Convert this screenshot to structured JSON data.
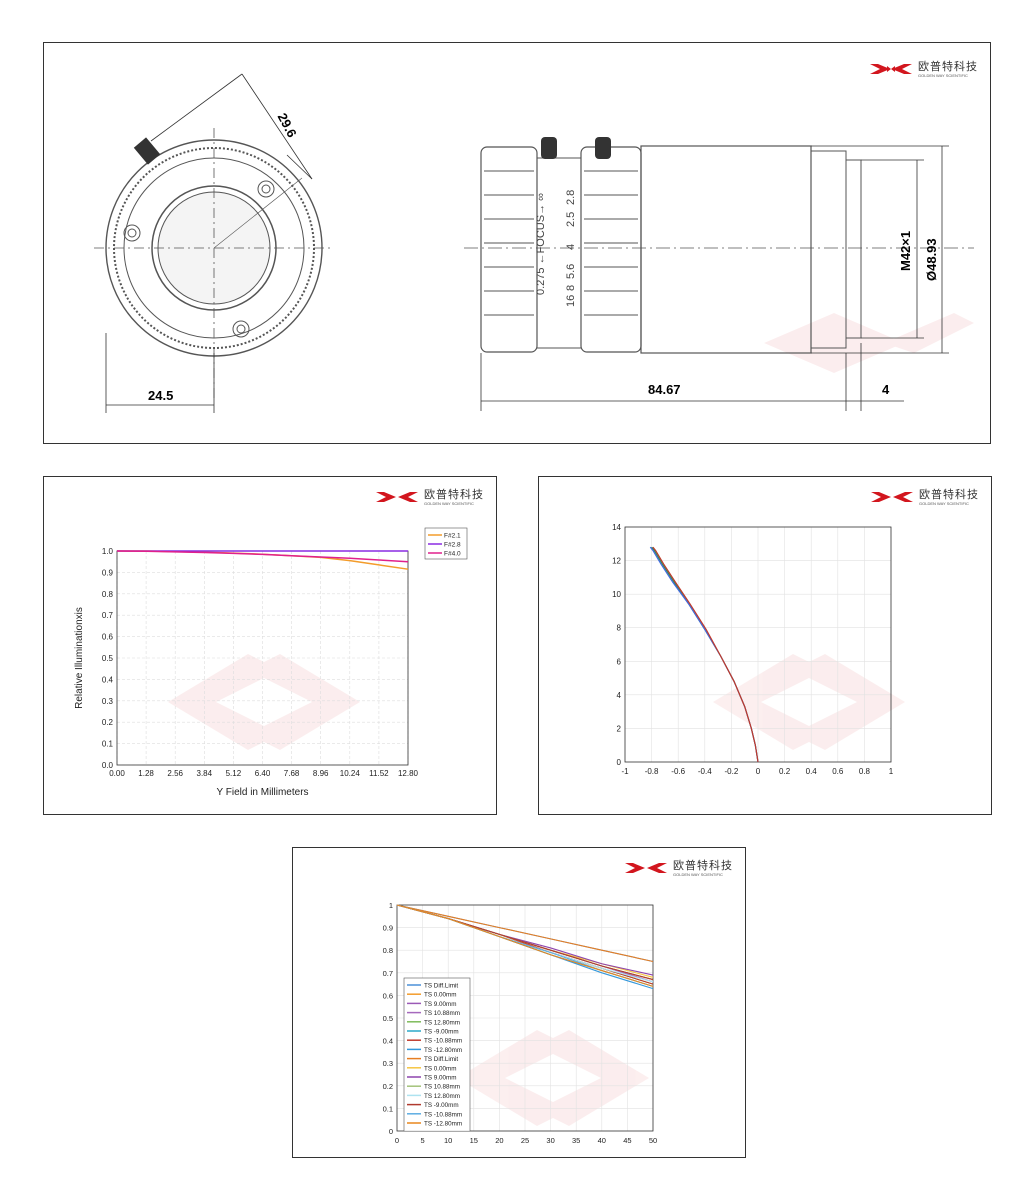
{
  "logo": {
    "cn": "欧普特科技",
    "en": "GOLDEN WAY SCIENTIFIC",
    "color": "#d2161e"
  },
  "drawing": {
    "dims": {
      "side_offset": "29.6",
      "radius": "24.5",
      "length": "84.67",
      "mount_len": "4",
      "thread": "M42×1",
      "diameter": "Ø48.93"
    },
    "scale": {
      "focus": "0.275 ←FOCUS→ ∞",
      "apertures": [
        "2.8",
        "2.5",
        "4",
        "5.6",
        "8",
        "16"
      ]
    }
  },
  "illum_chart": {
    "chart_data": {
      "type": "line",
      "x": [
        0,
        1.28,
        2.56,
        3.84,
        5.12,
        6.4,
        7.68,
        8.96,
        10.24,
        11.52,
        12.8
      ],
      "series": [
        {
          "name": "F#2.1",
          "color": "#f39c2b",
          "values": [
            1.0,
            1.0,
            0.997,
            0.995,
            0.99,
            0.985,
            0.978,
            0.97,
            0.955,
            0.935,
            0.915
          ]
        },
        {
          "name": "F#2.8",
          "color": "#8a2be2",
          "values": [
            1.0,
            1.0,
            1.0,
            1.0,
            1.0,
            1.0,
            1.0,
            1.0,
            1.0,
            1.0,
            1.0
          ]
        },
        {
          "name": "F#4.0",
          "color": "#e0208c",
          "values": [
            1.0,
            0.999,
            0.996,
            0.993,
            0.989,
            0.984,
            0.978,
            0.972,
            0.966,
            0.958,
            0.95
          ]
        }
      ],
      "xlabel": "Y Field in Millimeters",
      "ylabel": "Relative Illuminationxis",
      "xticks": [
        "0.00",
        "1.28",
        "2.56",
        "3.84",
        "5.12",
        "6.40",
        "7.68",
        "8.96",
        "10.24",
        "11.52",
        "12.80"
      ],
      "yticks": [
        "0.0",
        "0.1",
        "0.2",
        "0.3",
        "0.4",
        "0.5",
        "0.6",
        "0.7",
        "0.8",
        "0.9",
        "1.0"
      ],
      "xlim": [
        0,
        12.8
      ],
      "ylim": [
        0,
        1.0
      ],
      "grid": true,
      "legend": "top-right"
    }
  },
  "distortion_chart": {
    "chart_data": {
      "type": "line",
      "xlim": [
        -1,
        1
      ],
      "ylim": [
        0,
        14
      ],
      "xticks": [
        "-1",
        "-0.8",
        "-0.6",
        "-0.4",
        "-0.2",
        "0",
        "0.2",
        "0.4",
        "0.6",
        "0.8",
        "1"
      ],
      "yticks": [
        "0",
        "2",
        "4",
        "6",
        "8",
        "10",
        "12",
        "14"
      ],
      "series": [
        {
          "color": "#2e8b57",
          "points": [
            [
              0,
              0
            ],
            [
              -0.02,
              1
            ],
            [
              -0.05,
              2
            ],
            [
              -0.1,
              3.3
            ],
            [
              -0.18,
              4.8
            ],
            [
              -0.28,
              6.3
            ],
            [
              -0.4,
              7.9
            ],
            [
              -0.52,
              9.4
            ],
            [
              -0.63,
              10.7
            ],
            [
              -0.72,
              11.8
            ],
            [
              -0.78,
              12.6
            ],
            [
              -0.8,
              12.8
            ]
          ]
        },
        {
          "color": "#4169e1",
          "points": [
            [
              0,
              0
            ],
            [
              -0.02,
              1
            ],
            [
              -0.05,
              2
            ],
            [
              -0.1,
              3.3
            ],
            [
              -0.18,
              4.8
            ],
            [
              -0.28,
              6.3
            ],
            [
              -0.4,
              7.9
            ],
            [
              -0.52,
              9.4
            ],
            [
              -0.64,
              10.7
            ],
            [
              -0.73,
              11.8
            ],
            [
              -0.79,
              12.6
            ],
            [
              -0.81,
              12.8
            ]
          ]
        },
        {
          "color": "#c0392b",
          "points": [
            [
              0,
              0
            ],
            [
              -0.02,
              1
            ],
            [
              -0.05,
              2
            ],
            [
              -0.1,
              3.3
            ],
            [
              -0.18,
              4.8
            ],
            [
              -0.28,
              6.3
            ],
            [
              -0.39,
              7.9
            ],
            [
              -0.51,
              9.4
            ],
            [
              -0.62,
              10.7
            ],
            [
              -0.71,
              11.8
            ],
            [
              -0.77,
              12.6
            ],
            [
              -0.79,
              12.8
            ]
          ]
        }
      ],
      "grid": true
    }
  },
  "mtf_chart": {
    "chart_data": {
      "type": "line",
      "x": [
        0,
        10,
        20,
        30,
        40,
        50
      ],
      "xticks": [
        "0",
        "5",
        "10",
        "15",
        "20",
        "25",
        "30",
        "35",
        "40",
        "45",
        "50"
      ],
      "yticks": [
        "0",
        "0.1",
        "0.2",
        "0.3",
        "0.4",
        "0.5",
        "0.6",
        "0.7",
        "0.8",
        "0.9",
        "1"
      ],
      "xlim": [
        0,
        50
      ],
      "ylim": [
        0,
        1
      ],
      "series": [
        {
          "name": "TS Diff.Limit",
          "color": "#4a90d9",
          "values": [
            1.0,
            0.95,
            0.9,
            0.85,
            0.8,
            0.75
          ]
        },
        {
          "name": "TS 0.00mm",
          "color": "#f39c2b",
          "values": [
            1.0,
            0.94,
            0.87,
            0.8,
            0.73,
            0.67
          ]
        },
        {
          "name": "TS 9.00mm",
          "color": "#9b59b6",
          "values": [
            1.0,
            0.94,
            0.87,
            0.8,
            0.73,
            0.66
          ]
        },
        {
          "name": "TS 10.88mm",
          "color": "#a569bd",
          "values": [
            1.0,
            0.94,
            0.87,
            0.8,
            0.73,
            0.66
          ]
        },
        {
          "name": "TS 12.80mm",
          "color": "#7dbb5a",
          "values": [
            1.0,
            0.94,
            0.86,
            0.79,
            0.72,
            0.65
          ]
        },
        {
          "name": "TS -9.00mm",
          "color": "#2aa9c9",
          "values": [
            1.0,
            0.94,
            0.86,
            0.78,
            0.71,
            0.64
          ]
        },
        {
          "name": "TS -10.88mm",
          "color": "#c0392b",
          "values": [
            1.0,
            0.94,
            0.87,
            0.79,
            0.72,
            0.65
          ]
        },
        {
          "name": "TS -12.80mm",
          "color": "#3498db",
          "values": [
            1.0,
            0.94,
            0.86,
            0.78,
            0.7,
            0.63
          ]
        },
        {
          "name": "TS Diff.Limit",
          "color": "#e67e22",
          "values": [
            1.0,
            0.95,
            0.9,
            0.85,
            0.8,
            0.75
          ]
        },
        {
          "name": "TS 0.00mm",
          "color": "#f5c542",
          "values": [
            1.0,
            0.94,
            0.87,
            0.8,
            0.74,
            0.68
          ]
        },
        {
          "name": "TS 9.00mm",
          "color": "#8e44ad",
          "values": [
            1.0,
            0.94,
            0.87,
            0.81,
            0.74,
            0.69
          ]
        },
        {
          "name": "TS 10.88mm",
          "color": "#a3c27a",
          "values": [
            1.0,
            0.94,
            0.87,
            0.8,
            0.73,
            0.67
          ]
        },
        {
          "name": "TS 12.80mm",
          "color": "#aee3f0",
          "values": [
            1.0,
            0.94,
            0.86,
            0.79,
            0.72,
            0.66
          ]
        },
        {
          "name": "TS -9.00mm",
          "color": "#b03a2e",
          "values": [
            1.0,
            0.94,
            0.87,
            0.8,
            0.73,
            0.67
          ]
        },
        {
          "name": "TS -10.88mm",
          "color": "#5dade2",
          "values": [
            1.0,
            0.94,
            0.86,
            0.79,
            0.71,
            0.64
          ]
        },
        {
          "name": "TS -12.80mm",
          "color": "#e8871e",
          "values": [
            1.0,
            0.94,
            0.86,
            0.78,
            0.71,
            0.64
          ]
        }
      ],
      "grid": true,
      "legend": "bottom-left"
    }
  }
}
